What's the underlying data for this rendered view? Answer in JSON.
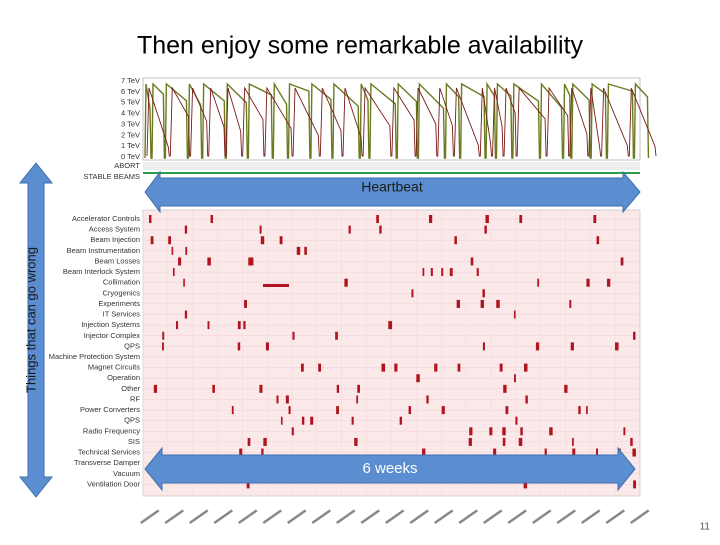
{
  "title": "Then enjoy some remarkable availability",
  "left_arrow_label": "Things that can go wrong",
  "heartbeat_label": "Heartbeat",
  "period_label": "6 weeks",
  "page_number": "11",
  "top_panel": {
    "energy_axis": [
      "7 TeV",
      "6 TeV",
      "5 TeV",
      "4 TeV",
      "3 TeV",
      "2 TeV",
      "1 TeV",
      "0 TeV"
    ],
    "state_rows": [
      "ABORT",
      "STABLE BEAMS"
    ]
  },
  "fault_panel": {
    "systems": [
      "Accelerator Controls",
      "Access System",
      "Beam Injection",
      "Beam Instrumentation",
      "Beam Losses",
      "Beam Interlock System",
      "Collimation",
      "Cryogenics",
      "Experiments",
      "IT Services",
      "Injection Systems",
      "Injector Complex",
      "QPS",
      "Machine Protection System",
      "Magnet Circuits",
      "Operation",
      "Other",
      "RF",
      "Power Converters",
      "QPS",
      "Radio Frequency",
      "SIS",
      "Technical Services",
      "Transverse Damper",
      "Vacuum",
      "Ventilation Door"
    ]
  }
}
